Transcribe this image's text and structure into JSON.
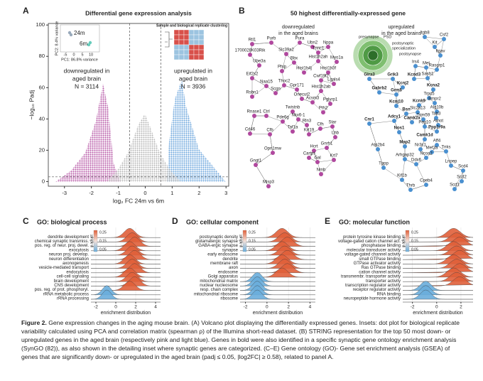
{
  "panels": {
    "A": {
      "label": "A",
      "title": "Differential gene expression analysis",
      "ylabel": "−log₁₀ Padj",
      "xlabel": "log₂ FC 24m vs 6m",
      "xlim": [
        -3.6,
        3.1
      ],
      "ylim": [
        -3,
        101
      ],
      "xticks": [
        -3,
        -2,
        -1,
        0,
        1,
        2,
        3
      ],
      "yticks": [
        0,
        20,
        40,
        60,
        80,
        100
      ],
      "fc_threshold": 0.58,
      "padj_line": 3,
      "down_text": [
        "downregulated in",
        "aged brain",
        "N = 3114"
      ],
      "down_color": "#b0489e",
      "up_text": [
        "upregulated in",
        "aged brain",
        "N = 3936"
      ],
      "up_color": "#4a90d0",
      "pca": {
        "groups": [
          "24m",
          "6m"
        ],
        "ylabel": "PC2: 8.4% variance",
        "xlabel": "PC1: 86.8% variance",
        "xticks": [
          -5,
          0,
          5,
          10
        ]
      },
      "heatmap_title": "Sample and biological replicate clustering"
    },
    "B": {
      "label": "B",
      "title": "50 highest differentially-expressed gene",
      "down_text": [
        "downregulated",
        "in the aged brains"
      ],
      "down_color": "#b0489e",
      "up_text": [
        "upregulated",
        "in the aged brains"
      ],
      "up_color": "#4a90d0",
      "synGO": [
        "presynapse",
        "PSD",
        "postsynaptic",
        "specialization",
        "postsynapse"
      ],
      "genes": [
        {
          "name": "Rtl1",
          "color": "#b0489e"
        },
        {
          "name": "Purb",
          "color": "#b0489e"
        },
        {
          "name": "Pura",
          "color": "#b0489e"
        },
        {
          "name": "Ubn2",
          "color": "#b0489e"
        },
        {
          "name": "Nppa",
          "color": "#b0489e"
        },
        {
          "name": "1700028K03Rik",
          "color": "#b0489e"
        },
        {
          "name": "Slc39a2",
          "color": "#b0489e"
        },
        {
          "name": "Tnnc1",
          "color": "#b0489e"
        },
        {
          "name": "Ube3a",
          "color": "#b0489e"
        },
        {
          "name": "Bbx",
          "color": "#b0489e"
        },
        {
          "name": "Hist1h2ah",
          "color": "#b0489e"
        },
        {
          "name": "Myo1a",
          "color": "#b0489e"
        },
        {
          "name": "Eif2s2",
          "color": "#b0489e"
        },
        {
          "name": "Phip",
          "color": "#b0489e"
        },
        {
          "name": "Hist1h4j",
          "color": "#b0489e"
        },
        {
          "name": "Hist1h3f",
          "color": "#b0489e"
        },
        {
          "name": "Naa15",
          "color": "#b0489e"
        },
        {
          "name": "Thoc2",
          "color": "#b0489e"
        },
        {
          "name": "Cwf19l2",
          "color": "#b0489e"
        },
        {
          "name": "Lgals4",
          "color": "#b0489e"
        },
        {
          "name": "Rsbn1",
          "color": "#b0489e"
        },
        {
          "name": "Scgn",
          "color": "#b0489e"
        },
        {
          "name": "Gpr171",
          "color": "#b0489e"
        },
        {
          "name": "Hist1h2ab",
          "color": "#b0489e"
        },
        {
          "name": "Onecut2",
          "color": "#b0489e"
        },
        {
          "name": "Acsm3",
          "color": "#b0489e"
        },
        {
          "name": "Pglyrp1",
          "color": "#b0489e"
        },
        {
          "name": "Pth2",
          "color": "#b0489e"
        },
        {
          "name": "Rnase1",
          "color": "#b0489e"
        },
        {
          "name": "Ctrl",
          "color": "#b0489e"
        },
        {
          "name": "Twistnb",
          "color": "#b0489e"
        },
        {
          "name": "Nkx6-1",
          "color": "#b0489e"
        },
        {
          "name": "Rln3",
          "color": "#b0489e"
        },
        {
          "name": "Cd46",
          "color": "#b0489e"
        },
        {
          "name": "Pde6g",
          "color": "#b0489e"
        },
        {
          "name": "Taf1a",
          "color": "#b0489e"
        },
        {
          "name": "Krt19",
          "color": "#b0489e"
        },
        {
          "name": "Star",
          "color": "#b0489e"
        },
        {
          "name": "Cfb",
          "color": "#b0489e"
        },
        {
          "name": "Lhb",
          "color": "#b0489e"
        },
        {
          "name": "Cfh",
          "color": "#b0489e"
        },
        {
          "name": "Opn1mw",
          "color": "#b0489e"
        },
        {
          "name": "Gnrh1",
          "color": "#b0489e"
        },
        {
          "name": "Hcrt",
          "color": "#b0489e"
        },
        {
          "name": "Krt7",
          "color": "#b0489e"
        },
        {
          "name": "Cartpt",
          "color": "#b0489e"
        },
        {
          "name": "Gal",
          "color": "#b0489e"
        },
        {
          "name": "Gngt1",
          "color": "#b0489e"
        },
        {
          "name": "Nmb",
          "color": "#b0489e"
        },
        {
          "name": "Misp3",
          "color": "#b0489e"
        },
        {
          "name": "Itgb8",
          "color": "#4a90d0"
        },
        {
          "name": "Csf2",
          "color": "#4a90d0"
        },
        {
          "name": "Kit",
          "color": "#4a90d0"
        },
        {
          "name": "Itgav",
          "color": "#4a90d0"
        },
        {
          "name": "Rasgrp1",
          "color": "#4a90d0"
        },
        {
          "name": "Irs4",
          "color": "#4a90d0"
        },
        {
          "name": "Met",
          "color": "#4a90d0"
        },
        {
          "name": "Sash1",
          "color": "#4a90d0"
        },
        {
          "name": "Glra3",
          "color": "#4a90d0",
          "bold": true
        },
        {
          "name": "Grik3",
          "color": "#4a90d0",
          "bold": true
        },
        {
          "name": "Kcnd3",
          "color": "#4a90d0",
          "bold": true
        },
        {
          "name": "Kcnj2",
          "color": "#4a90d0",
          "bold": true
        },
        {
          "name": "Kcna2",
          "color": "#4a90d0",
          "bold": true
        },
        {
          "name": "Gabrb2",
          "color": "#4a90d0",
          "bold": true
        },
        {
          "name": "Grm5",
          "color": "#4a90d0",
          "bold": true
        },
        {
          "name": "Trpc5",
          "color": "#4a90d0"
        },
        {
          "name": "Kcnj10",
          "color": "#4a90d0",
          "bold": true
        },
        {
          "name": "Kcnk9",
          "color": "#4a90d0",
          "bold": true
        },
        {
          "name": "Bmpr2",
          "color": "#4a90d0"
        },
        {
          "name": "Bsn",
          "color": "#4a90d0",
          "bold": true
        },
        {
          "name": "Slc2a13",
          "color": "#4a90d0"
        },
        {
          "name": "Alg10b",
          "color": "#4a90d0"
        },
        {
          "name": "Cnr1",
          "color": "#4a90d0",
          "bold": true
        },
        {
          "name": "Adcy1",
          "color": "#4a90d0",
          "bold": true
        },
        {
          "name": "Camk2a",
          "color": "#4a90d0",
          "bold": true
        },
        {
          "name": "Tab3",
          "color": "#4a90d0"
        },
        {
          "name": "Trim59",
          "color": "#4a90d0"
        },
        {
          "name": "Amot",
          "color": "#4a90d0"
        },
        {
          "name": "Peg10",
          "color": "#4a90d0"
        },
        {
          "name": "Ppp1r9a",
          "color": "#4a90d0",
          "bold": true
        },
        {
          "name": "Nos1",
          "color": "#4a90d0",
          "bold": true
        },
        {
          "name": "Camk1d",
          "color": "#4a90d0",
          "bold": true
        },
        {
          "name": "Atp2b4",
          "color": "#4a90d0"
        },
        {
          "name": "Map2",
          "color": "#4a90d0",
          "bold": true
        },
        {
          "name": "Nr3c1",
          "color": "#4a90d0"
        },
        {
          "name": "Aff4",
          "color": "#4a90d0"
        },
        {
          "name": "Tnks",
          "color": "#4a90d0"
        },
        {
          "name": "Mef2a",
          "color": "#4a90d0"
        },
        {
          "name": "Lnpep",
          "color": "#4a90d0"
        },
        {
          "name": "Ncoa2",
          "color": "#4a90d0"
        },
        {
          "name": "Arhgap32",
          "color": "#4a90d0"
        },
        {
          "name": "Ddx6",
          "color": "#4a90d0"
        },
        {
          "name": "Tppp",
          "color": "#4a90d0"
        },
        {
          "name": "Scd4",
          "color": "#4a90d0"
        },
        {
          "name": "Scd2",
          "color": "#4a90d0"
        },
        {
          "name": "Scd1",
          "color": "#4a90d0"
        },
        {
          "name": "Kif1b",
          "color": "#4a90d0"
        },
        {
          "name": "Thrb",
          "color": "#4a90d0"
        },
        {
          "name": "Cpeb4",
          "color": "#4a90d0"
        }
      ]
    },
    "C": {
      "label": "C",
      "title": "GO: biological process",
      "xlabel": "enrichment distribution",
      "xlim": [
        -2.5,
        4.5
      ],
      "xticks": [
        -2,
        0,
        2,
        4
      ],
      "legend_title": "p.adjust",
      "legend_labels": [
        "0.25",
        "0.15",
        "0.05"
      ],
      "up_color": "#e0603a",
      "down_color": "#6aaedc",
      "terms": [
        {
          "name": "dendrite development",
          "color": "#e0603a"
        },
        {
          "name": "chemical synaptic transmiss.",
          "color": "#e0603a"
        },
        {
          "name": "pos. reg. of neur. proj. devel.",
          "color": "#e0603a"
        },
        {
          "name": "exocytosis",
          "color": "#e0603a"
        },
        {
          "name": "neuron proj. develop.",
          "color": "#e0603a"
        },
        {
          "name": "neuron differentiation",
          "color": "#e0603a"
        },
        {
          "name": "axonogenesis",
          "color": "#e0603a"
        },
        {
          "name": "vesicle-mediated transport",
          "color": "#e0603a"
        },
        {
          "name": "endocytosis",
          "color": "#e0603a"
        },
        {
          "name": "cell-cell signaling",
          "color": "#e0603a"
        },
        {
          "name": "brain development",
          "color": "#e0603a"
        },
        {
          "name": "CNS development",
          "color": "#e0603a"
        },
        {
          "name": "pos. reg. of prot. phosphoryl.",
          "color": "#e0603a"
        },
        {
          "name": "rRNA metabolic process",
          "color": "#6aaedc"
        },
        {
          "name": "rRNA processing",
          "color": "#6aaedc"
        }
      ]
    },
    "D": {
      "label": "D",
      "title": "GO: cellular component",
      "xlabel": "enrichment distribution",
      "xlim": [
        -2.5,
        4.5
      ],
      "xticks": [
        -2,
        0,
        2,
        4
      ],
      "legend_title": "p.adjust",
      "legend_labels": [
        "0.25",
        "0.15",
        "0.05"
      ],
      "up_color": "#e0603a",
      "down_color": "#6aaedc",
      "terms": [
        {
          "name": "postsynaptic density",
          "color": "#e0603a"
        },
        {
          "name": "glutamatergic synapse",
          "color": "#e0603a"
        },
        {
          "name": "GABA-ergic synapse",
          "color": "#e0603a"
        },
        {
          "name": "synapse",
          "color": "#e0603a"
        },
        {
          "name": "early endosome",
          "color": "#e0603a"
        },
        {
          "name": "dendrite",
          "color": "#e0603a"
        },
        {
          "name": "membrane raft",
          "color": "#e0603a"
        },
        {
          "name": "axon",
          "color": "#e0603a"
        },
        {
          "name": "endosome",
          "color": "#e0603a"
        },
        {
          "name": "Golgi apparatus",
          "color": "#e0603a"
        },
        {
          "name": "mitochondrial matrix",
          "color": "#6aaedc"
        },
        {
          "name": "nuclear nucleosome",
          "color": "#6aaedc"
        },
        {
          "name": "resp. chain complex",
          "color": "#6aaedc"
        },
        {
          "name": "mitochondrial ribosome",
          "color": "#6aaedc"
        },
        {
          "name": "ribosome",
          "color": "#6aaedc"
        }
      ]
    },
    "E": {
      "label": "E",
      "title": "GO: molecular function",
      "xlabel": "enrichment distribution",
      "xlim": [
        -2.8,
        3
      ],
      "xticks": [
        -2,
        0,
        2
      ],
      "legend_title": "p.adjust",
      "legend_labels": [
        "0.25",
        "0.15",
        "0.05"
      ],
      "up_color": "#e0603a",
      "down_color": "#6aaedc",
      "terms": [
        {
          "name": "protein tyrosine kinase binding",
          "color": "#e0603a"
        },
        {
          "name": "voltage-gated cation channel act.",
          "color": "#e0603a"
        },
        {
          "name": "phosphatase binding",
          "color": "#e0603a"
        },
        {
          "name": "molecular transducer activity",
          "color": "#e0603a"
        },
        {
          "name": "voltage-gated channel activity",
          "color": "#e0603a"
        },
        {
          "name": "small GTPase binding",
          "color": "#e0603a"
        },
        {
          "name": "GTPase activator activity",
          "color": "#e0603a"
        },
        {
          "name": "Ras GTPase binding",
          "color": "#e0603a"
        },
        {
          "name": "cation channel activity",
          "color": "#e0603a"
        },
        {
          "name": "transmembr. transporter activity",
          "color": "#e0603a"
        },
        {
          "name": "transporter activity",
          "color": "#e0603a"
        },
        {
          "name": "transcription regulator activity",
          "color": "#e0603a"
        },
        {
          "name": "receptor regulator activity",
          "color": "#6aaedc"
        },
        {
          "name": "RNA binding",
          "color": "#6aaedc"
        },
        {
          "name": "neuropeptide hormone activity",
          "color": "#6aaedc"
        }
      ]
    }
  },
  "caption": {
    "label": "Figure 2.",
    "text": "Gene expression changes in the aging mouse brain. (A) Volcano plot displaying the differentially expressed genes. Insets: dot plot for biological replicate variability calculated using PCA and correlation matrix (spearman ρ) of the Illumina short-read dataset. (B) STRING representation for the top 50 most down- or upregulated genes in the aged brain (respectively pink and light blue). Genes in bold were also identified in a specific synaptic gene ontology enrichment analysis (SynGO (82)), as also shown in the detailing inset where synaptic genes are categorized. (C–E) Gene ontology (GO)- Gene set enrichment analysis (GSEA) of genes that are significantly down- or upregulated in the aged brain (padj ≤ 0.05, |log2FC| ≥ 0.58), related to panel A."
  }
}
